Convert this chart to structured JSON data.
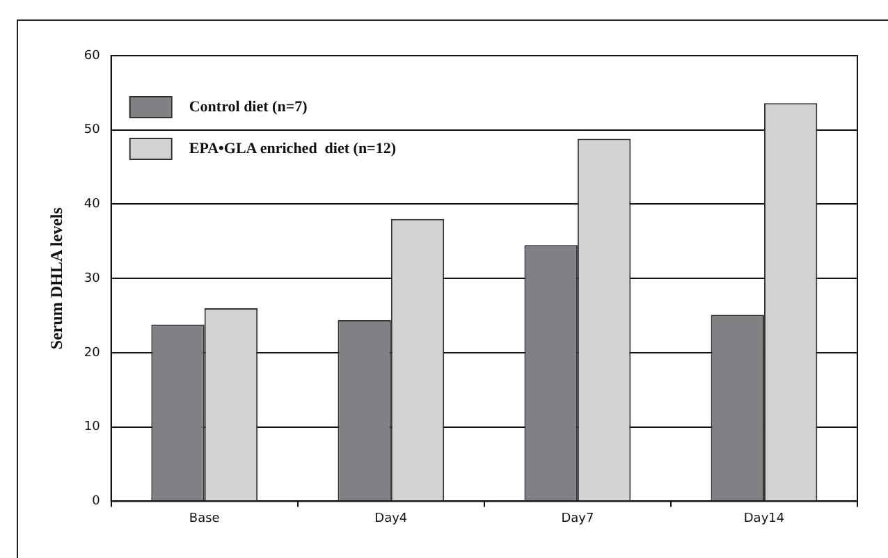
{
  "chart_data": {
    "type": "bar",
    "ylabel": "Serum DHLA levels",
    "categories": [
      "Base",
      "Day4",
      "Day7",
      "Day14"
    ],
    "series": [
      {
        "name": "Control diet (n=7)",
        "color": "#808184",
        "values": [
          23.8,
          24.4,
          34.5,
          25.1
        ]
      },
      {
        "name": "EPA•GLA enriched  diet (n=12)",
        "color": "#d1d2d4",
        "values": [
          26,
          38,
          48.8,
          53.6
        ]
      }
    ],
    "ylim": [
      0,
      60
    ],
    "yticks": [
      0,
      10,
      20,
      30,
      40,
      50,
      60
    ],
    "grid": "y",
    "legend": "top left"
  }
}
